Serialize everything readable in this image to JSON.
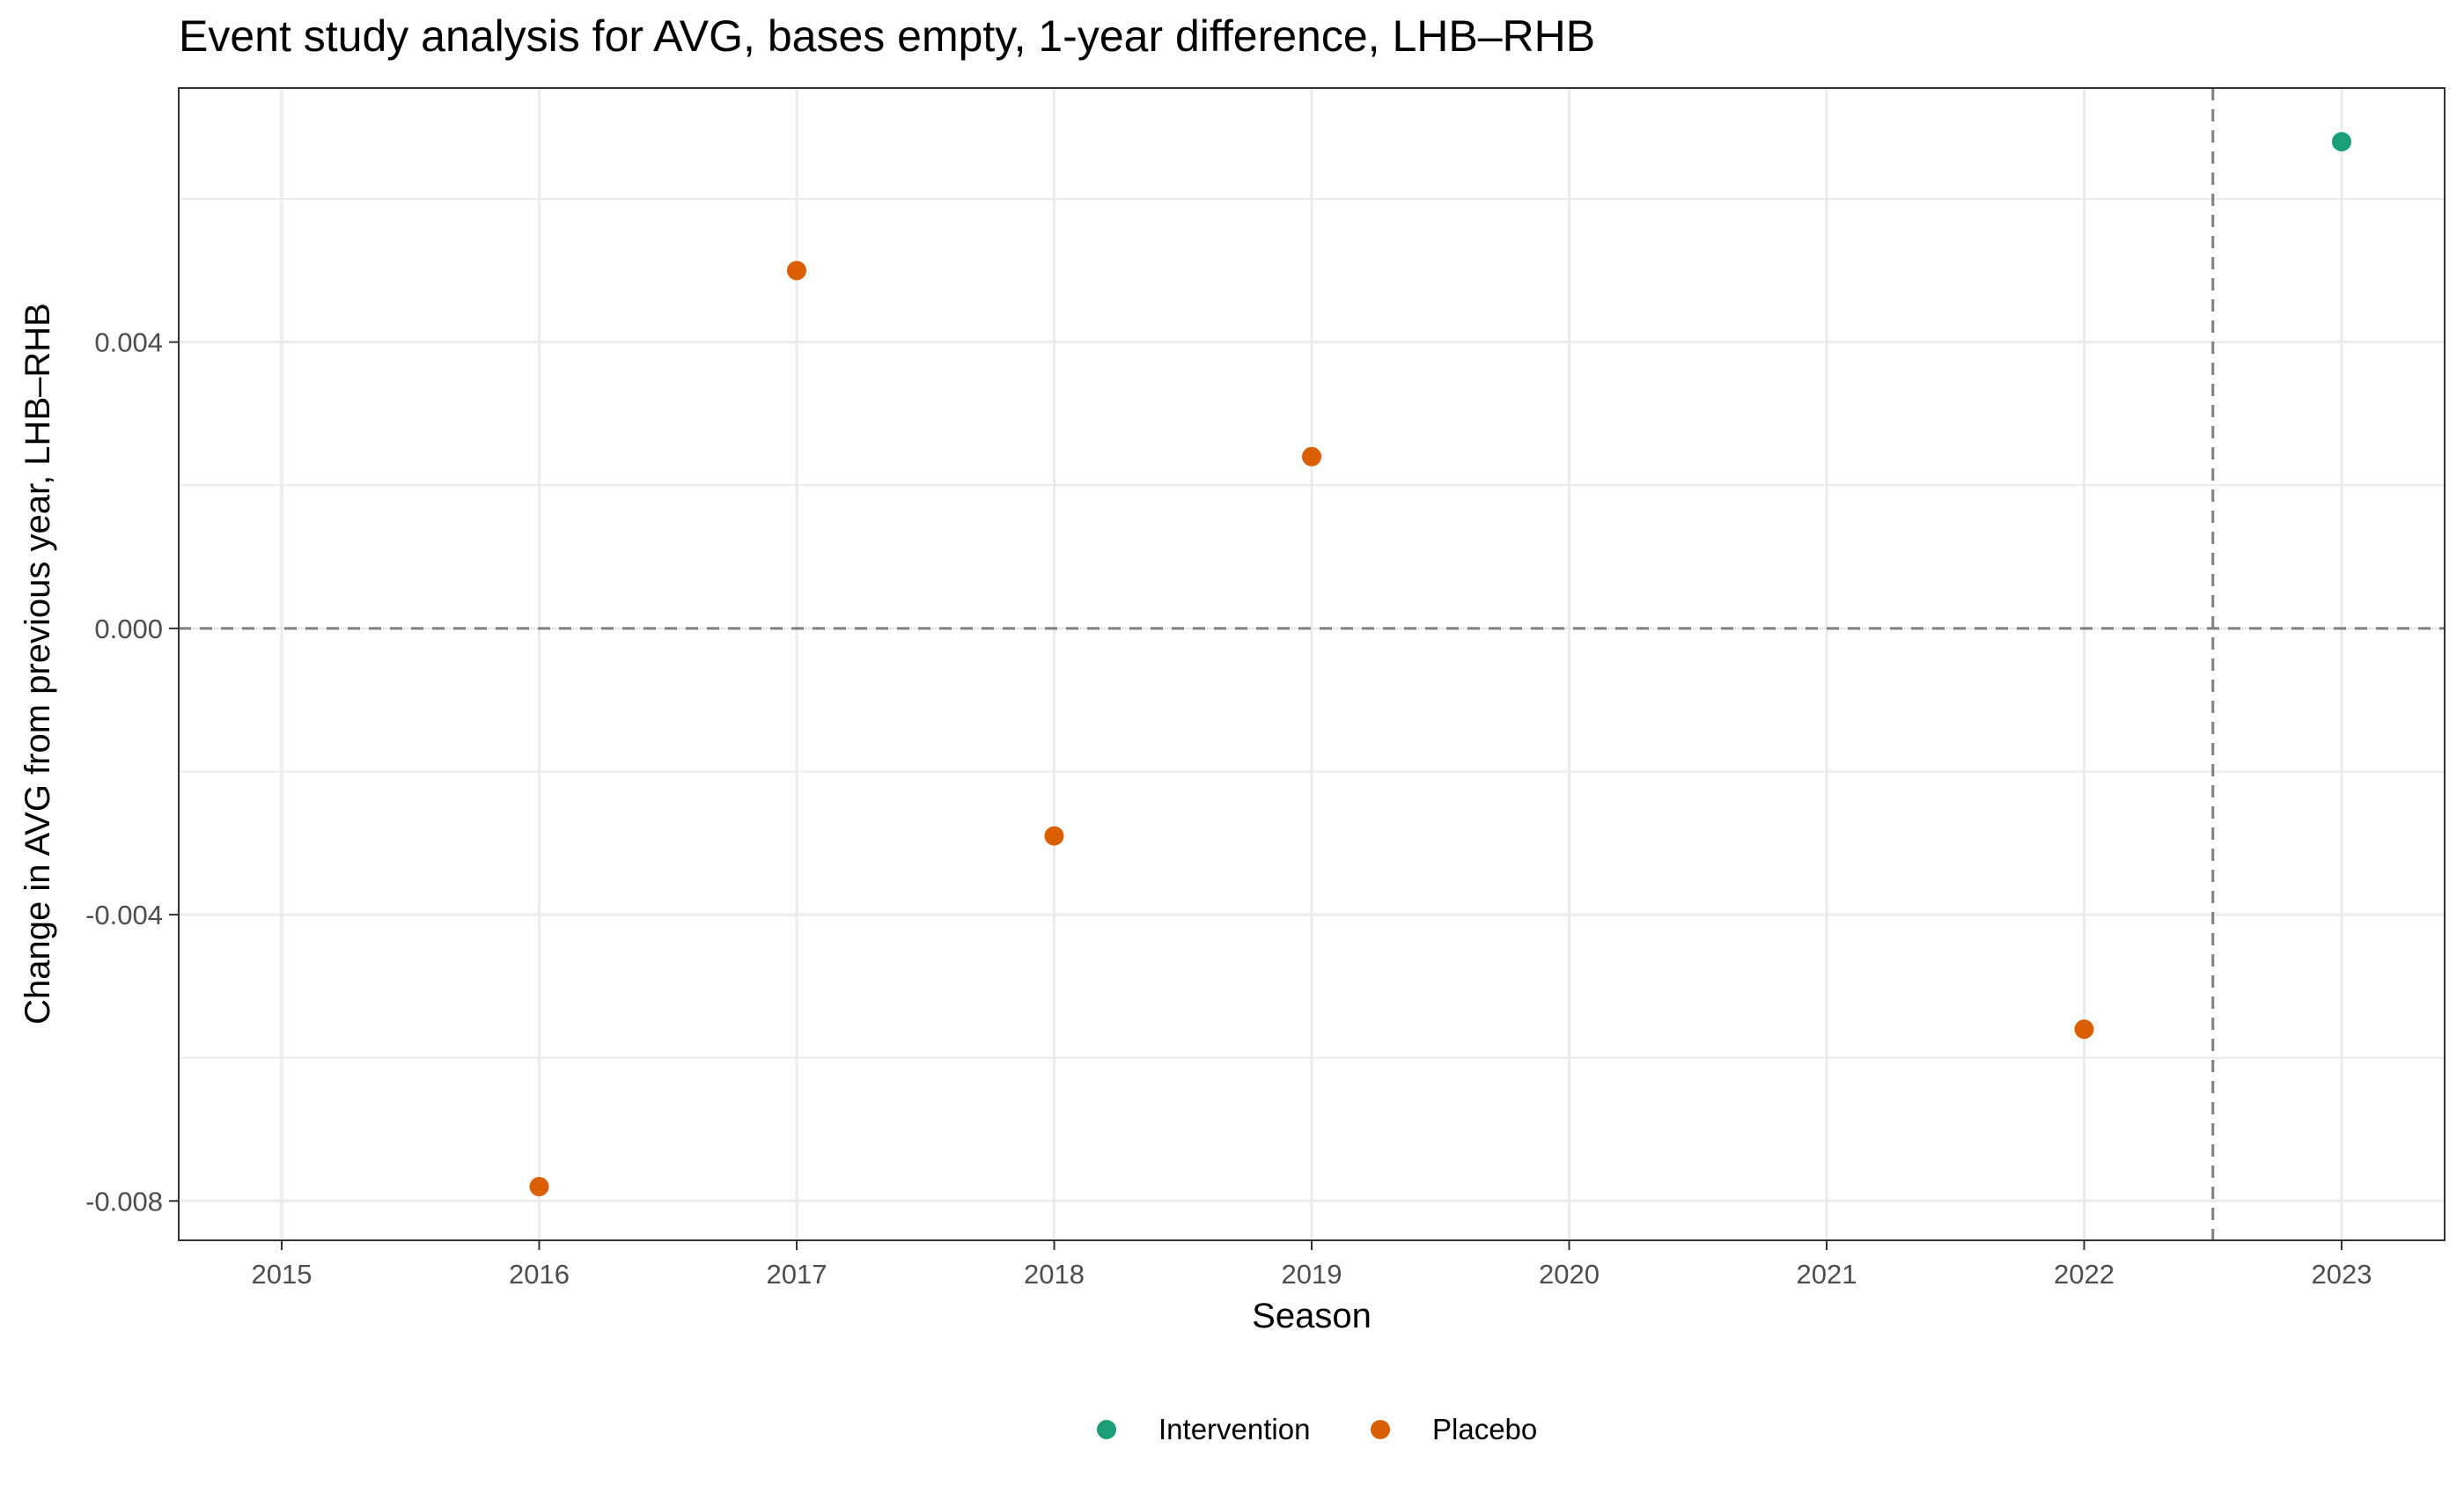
{
  "chart_data": {
    "type": "scatter",
    "title": "Event study analysis for AVG, bases empty, 1-year difference, LHB–RHB",
    "xlabel": "Season",
    "ylabel": "Change in AVG from previous year, LHB–RHB",
    "xlim": [
      2014.6,
      2023.4
    ],
    "ylim": [
      -0.00855,
      0.00755
    ],
    "x_ticks": [
      2015,
      2016,
      2017,
      2018,
      2019,
      2020,
      2021,
      2022,
      2023
    ],
    "x_tick_labels": [
      "2015",
      "2016",
      "2017",
      "2018",
      "2019",
      "2020",
      "2021",
      "2022",
      "2023"
    ],
    "y_ticks": [
      -0.008,
      -0.004,
      0.0,
      0.004
    ],
    "y_tick_labels": [
      "-0.008",
      "-0.004",
      "0.000",
      "0.004"
    ],
    "y_minor_ticks": [
      -0.006,
      -0.002,
      0.002,
      0.006
    ],
    "reference_lines": {
      "horizontal_y": 0.0,
      "vertical_x": 2022.5
    },
    "grid": true,
    "legend_position": "bottom",
    "series": [
      {
        "name": "Intervention",
        "color": "#1b9e77",
        "points": [
          {
            "x": 2023,
            "y": 0.0068
          }
        ]
      },
      {
        "name": "Placebo",
        "color": "#d95f02",
        "points": [
          {
            "x": 2016,
            "y": -0.0078
          },
          {
            "x": 2017,
            "y": 0.005
          },
          {
            "x": 2018,
            "y": -0.0029
          },
          {
            "x": 2019,
            "y": 0.0024
          },
          {
            "x": 2022,
            "y": -0.0056
          }
        ]
      }
    ]
  }
}
